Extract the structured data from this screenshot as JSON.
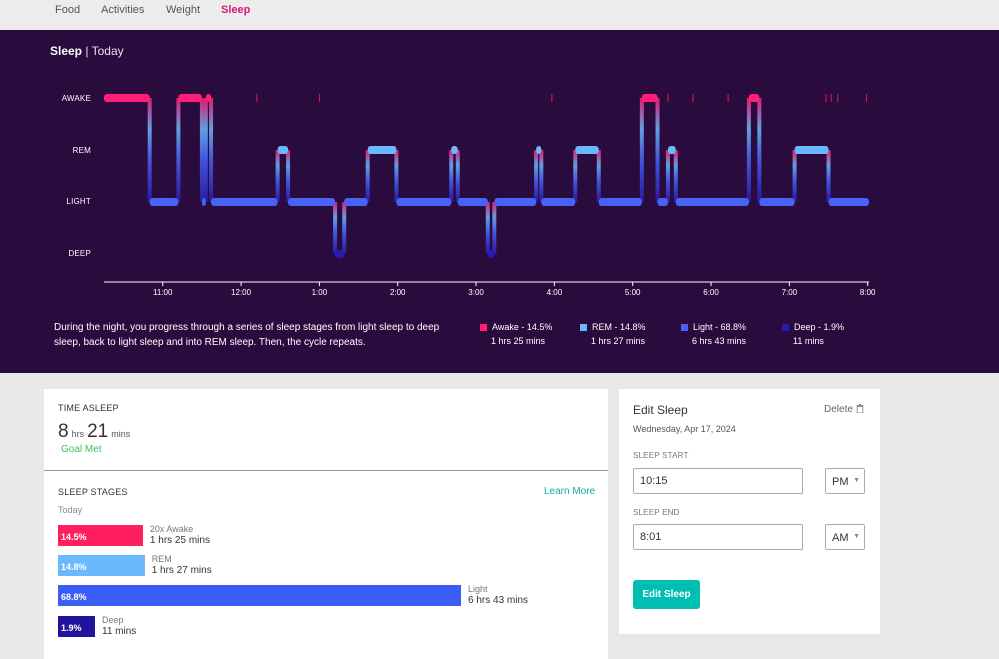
{
  "nav": {
    "items": [
      {
        "label": "Food",
        "active": false
      },
      {
        "label": "Activities",
        "active": false
      },
      {
        "label": "Weight",
        "active": false
      },
      {
        "label": "Sleep",
        "active": true
      }
    ]
  },
  "hero": {
    "title": "Sleep",
    "separator": "|",
    "period": "Today",
    "stage_labels": [
      "AWAKE",
      "REM",
      "LIGHT",
      "DEEP"
    ],
    "description": "During the night, you progress through a series of sleep stages from light sleep to deep sleep, back to light sleep and into REM sleep. Then, the cycle repeats.",
    "legend": [
      {
        "label": "Awake - 14.5%",
        "duration": "1 hrs 25 mins",
        "color": "#ff1f78"
      },
      {
        "label": "REM - 14.8%",
        "duration": "1 hrs 27 mins",
        "color": "#6ab9ff"
      },
      {
        "label": "Light - 68.8%",
        "duration": "6 hrs 43 mins",
        "color": "#4862f5"
      },
      {
        "label": "Deep - 1.9%",
        "duration": "11 mins",
        "color": "#2a1bb0"
      }
    ]
  },
  "chart_data": {
    "type": "line",
    "title": "",
    "xlabel": "",
    "ylabel": "",
    "x_ticks": [
      "11:00",
      "12:00",
      "1:00",
      "2:00",
      "3:00",
      "4:00",
      "5:00",
      "6:00",
      "7:00",
      "8:00"
    ],
    "x_range": [
      "10:15 PM",
      "8:01 AM"
    ],
    "y_categories": [
      "AWAKE",
      "REM",
      "LIGHT",
      "DEEP"
    ],
    "stage_colors": {
      "AWAKE": "#ff1f78",
      "REM": "#6ab9ff",
      "LIGHT": "#4862f5",
      "DEEP": "#2a1bb0"
    },
    "segments": [
      {
        "stage": "AWAKE",
        "start": "22:15",
        "end": "22:50"
      },
      {
        "stage": "LIGHT",
        "start": "22:50",
        "end": "23:12"
      },
      {
        "stage": "AWAKE",
        "start": "23:12",
        "end": "23:30"
      },
      {
        "stage": "LIGHT",
        "start": "23:30",
        "end": "23:33"
      },
      {
        "stage": "AWAKE",
        "start": "23:33",
        "end": "23:37"
      },
      {
        "stage": "LIGHT",
        "start": "23:37",
        "end": "00:28"
      },
      {
        "stage": "REM",
        "start": "00:28",
        "end": "00:36"
      },
      {
        "stage": "LIGHT",
        "start": "00:36",
        "end": "01:12"
      },
      {
        "stage": "DEEP",
        "start": "01:12",
        "end": "01:19"
      },
      {
        "stage": "LIGHT",
        "start": "01:19",
        "end": "01:37"
      },
      {
        "stage": "REM",
        "start": "01:37",
        "end": "01:59"
      },
      {
        "stage": "LIGHT",
        "start": "01:59",
        "end": "02:41"
      },
      {
        "stage": "REM",
        "start": "02:41",
        "end": "02:46"
      },
      {
        "stage": "LIGHT",
        "start": "02:46",
        "end": "03:09"
      },
      {
        "stage": "DEEP",
        "start": "03:09",
        "end": "03:14"
      },
      {
        "stage": "LIGHT",
        "start": "03:14",
        "end": "03:46"
      },
      {
        "stage": "REM",
        "start": "03:46",
        "end": "03:50"
      },
      {
        "stage": "LIGHT",
        "start": "03:50",
        "end": "04:16"
      },
      {
        "stage": "REM",
        "start": "04:16",
        "end": "04:34"
      },
      {
        "stage": "LIGHT",
        "start": "04:34",
        "end": "05:07"
      },
      {
        "stage": "AWAKE",
        "start": "05:07",
        "end": "05:19"
      },
      {
        "stage": "LIGHT",
        "start": "05:19",
        "end": "05:27"
      },
      {
        "stage": "REM",
        "start": "05:27",
        "end": "05:33"
      },
      {
        "stage": "LIGHT",
        "start": "05:33",
        "end": "06:29"
      },
      {
        "stage": "AWAKE",
        "start": "06:29",
        "end": "06:37"
      },
      {
        "stage": "LIGHT",
        "start": "06:37",
        "end": "07:04"
      },
      {
        "stage": "REM",
        "start": "07:04",
        "end": "07:30"
      },
      {
        "stage": "LIGHT",
        "start": "07:30",
        "end": "08:01"
      }
    ],
    "brief_awakenings": [
      "00:12",
      "01:00",
      "03:58",
      "05:27",
      "05:46",
      "06:13",
      "07:28",
      "07:32",
      "07:37",
      "07:59"
    ],
    "grid": false
  },
  "time_asleep": {
    "caption": "TIME ASLEEP",
    "hours": "8",
    "hours_unit": "hrs",
    "minutes": "21",
    "minutes_unit": "mins",
    "goal": "Goal Met"
  },
  "sleep_stages": {
    "caption": "SLEEP STAGES",
    "learn_more": "Learn More",
    "period": "Today",
    "bars": [
      {
        "pct_label": "14.5%",
        "pct": 14.5,
        "name": "20x Awake",
        "duration": "1 hrs 25 mins",
        "color": "#ff1f5f"
      },
      {
        "pct_label": "14.8%",
        "pct": 14.8,
        "name": "REM",
        "duration": "1 hrs 27 mins",
        "color": "#6ab9ff"
      },
      {
        "pct_label": "68.8%",
        "pct": 68.8,
        "name": "Light",
        "duration": "6 hrs 43 mins",
        "color": "#3a5ef5"
      },
      {
        "pct_label": "1.9%",
        "pct": 1.9,
        "name": "Deep",
        "duration": "11 mins",
        "color": "#22139c"
      }
    ]
  },
  "edit_sleep": {
    "title": "Edit Sleep",
    "delete_label": "Delete",
    "date": "Wednesday, Apr 17, 2024",
    "start_caption": "SLEEP START",
    "start_value": "10:15",
    "start_ampm": "PM",
    "end_caption": "SLEEP END",
    "end_value": "8:01",
    "end_ampm": "AM",
    "button_label": "Edit Sleep"
  }
}
